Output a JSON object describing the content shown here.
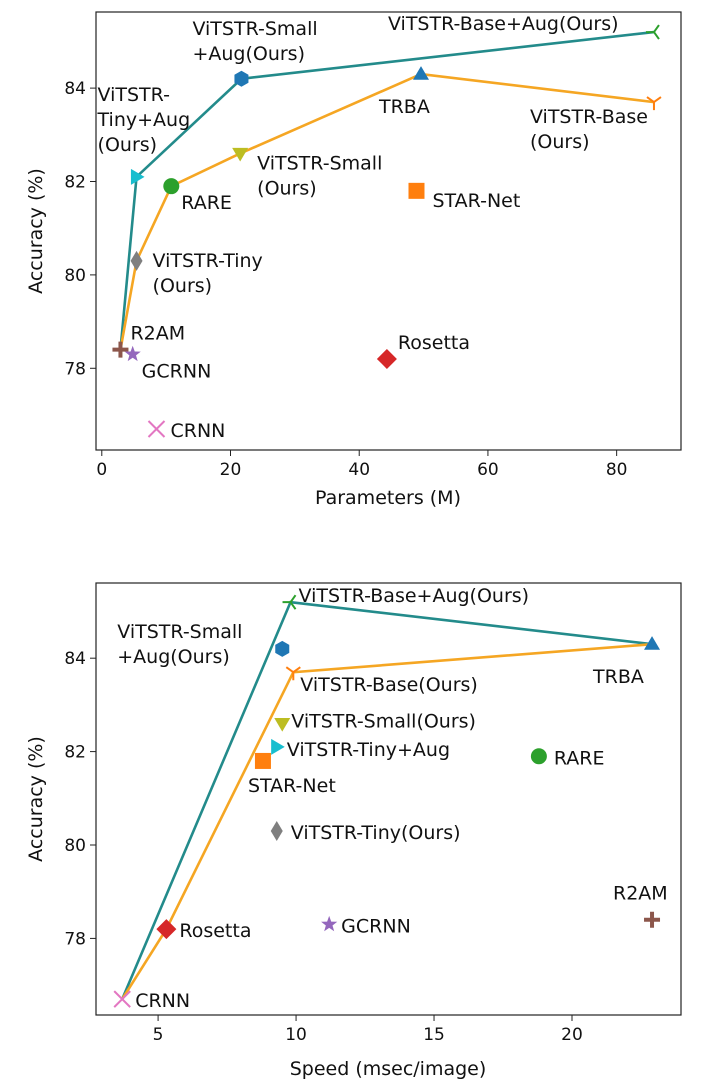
{
  "chart_data": [
    {
      "type": "scatter",
      "xlabel": "Parameters (M)",
      "ylabel": "Accuracy (%)",
      "xlim": [
        -0.9,
        90
      ],
      "ylim": [
        76.25,
        85.63
      ],
      "xticks": [
        0,
        20,
        40,
        60,
        80
      ],
      "yticks": [
        78,
        80,
        82,
        84
      ],
      "grid": false,
      "points": [
        {
          "id": "vitstr-base-aug",
          "label": [
            "ViTSTR-Base+Aug(Ours)"
          ],
          "x": 85.8,
          "y": 85.2,
          "marker": "tri_left",
          "color": "#2ca02c"
        },
        {
          "id": "vitstr-small-aug",
          "label": [
            "ViTSTR-Small",
            "+Aug(Ours)"
          ],
          "x": 21.7,
          "y": 84.2,
          "marker": "hexagon",
          "color": "#1f77b4"
        },
        {
          "id": "vitstr-tiny-aug",
          "label": [
            "ViTSTR-",
            "Tiny+Aug",
            "(Ours)"
          ],
          "x": 5.4,
          "y": 82.1,
          "marker": "triangle_right",
          "color": "#17becf"
        },
        {
          "id": "r2am",
          "label": [
            "R2AM"
          ],
          "x": 2.9,
          "y": 78.4,
          "marker": "plus",
          "color": "#8c564b"
        },
        {
          "id": "gcrnn",
          "label": [
            "GCRNN"
          ],
          "x": 4.8,
          "y": 78.3,
          "marker": "star",
          "color": "#9467bd"
        },
        {
          "id": "crnn",
          "label": [
            "CRNN"
          ],
          "x": 8.5,
          "y": 76.7,
          "marker": "x",
          "color": "#e377c2"
        },
        {
          "id": "rosetta",
          "label": [
            "Rosetta"
          ],
          "x": 44.3,
          "y": 78.2,
          "marker": "diamond",
          "color": "#d62728"
        },
        {
          "id": "vitstr-tiny",
          "label": [
            "ViTSTR-Tiny",
            "(Ours)"
          ],
          "x": 5.4,
          "y": 80.3,
          "marker": "thin_diamond",
          "color": "#7f7f7f"
        },
        {
          "id": "rare",
          "label": [
            "RARE"
          ],
          "x": 10.8,
          "y": 81.9,
          "marker": "circle",
          "color": "#2ca02c"
        },
        {
          "id": "vitstr-small",
          "label": [
            "ViTSTR-Small",
            "(Ours)"
          ],
          "x": 21.5,
          "y": 82.6,
          "marker": "triangle_down",
          "color": "#bcbd22"
        },
        {
          "id": "star-net",
          "label": [
            "STAR-Net"
          ],
          "x": 48.9,
          "y": 81.8,
          "marker": "square",
          "color": "#ff7f0e"
        },
        {
          "id": "trba",
          "label": [
            "TRBA"
          ],
          "x": 49.6,
          "y": 84.3,
          "marker": "triangle_up",
          "color": "#1f77b4"
        },
        {
          "id": "vitstr-base",
          "label": [
            "ViTSTR-Base",
            "(Ours)"
          ],
          "x": 85.8,
          "y": 83.7,
          "marker": "tri_down",
          "color": "#ff7f0e"
        }
      ],
      "lines": [
        {
          "color": "#238b8b",
          "path": [
            "r2am",
            "vitstr-tiny-aug",
            "vitstr-small-aug",
            "vitstr-base-aug"
          ]
        },
        {
          "color": "#f5a623",
          "path": [
            "r2am",
            "vitstr-tiny",
            "rare",
            "vitstr-small",
            "trba",
            "vitstr-base"
          ]
        }
      ]
    },
    {
      "type": "scatter",
      "xlabel": "Speed (msec/image)",
      "ylabel": "Accuracy (%)",
      "xlim": [
        2.75,
        23.95
      ],
      "ylim": [
        76.36,
        85.61
      ],
      "xticks": [
        5,
        10,
        15,
        20
      ],
      "yticks": [
        78,
        80,
        82,
        84
      ],
      "grid": false,
      "points": [
        {
          "id": "vitstr-base-aug",
          "label": [
            "ViTSTR-Base+Aug(Ours)"
          ],
          "x": 9.8,
          "y": 85.2,
          "marker": "tri_left",
          "color": "#2ca02c"
        },
        {
          "id": "vitstr-small-aug",
          "label": [
            "ViTSTR-Small",
            "+Aug(Ours)"
          ],
          "x": 9.5,
          "y": 84.2,
          "marker": "hexagon",
          "color": "#1f77b4"
        },
        {
          "id": "trba",
          "label": [
            "TRBA"
          ],
          "x": 22.9,
          "y": 84.3,
          "marker": "triangle_up",
          "color": "#1f77b4"
        },
        {
          "id": "vitstr-base",
          "label": [
            "ViTSTR-Base(Ours)"
          ],
          "x": 9.9,
          "y": 83.7,
          "marker": "tri_down",
          "color": "#ff7f0e"
        },
        {
          "id": "vitstr-small",
          "label": [
            "ViTSTR-Small(Ours)"
          ],
          "x": 9.5,
          "y": 82.6,
          "marker": "triangle_down",
          "color": "#bcbd22"
        },
        {
          "id": "vitstr-tiny-aug",
          "label": [
            "ViTSTR-Tiny+Aug"
          ],
          "x": 9.3,
          "y": 82.1,
          "marker": "triangle_right",
          "color": "#17becf"
        },
        {
          "id": "star-net",
          "label": [
            "STAR-Net"
          ],
          "x": 8.8,
          "y": 81.8,
          "marker": "square",
          "color": "#ff7f0e"
        },
        {
          "id": "rare",
          "label": [
            "RARE"
          ],
          "x": 18.8,
          "y": 81.9,
          "marker": "circle",
          "color": "#2ca02c"
        },
        {
          "id": "vitstr-tiny",
          "label": [
            "ViTSTR-Tiny(Ours)"
          ],
          "x": 9.3,
          "y": 80.3,
          "marker": "thin_diamond",
          "color": "#7f7f7f"
        },
        {
          "id": "r2am",
          "label": [
            "R2AM"
          ],
          "x": 22.9,
          "y": 78.4,
          "marker": "plus",
          "color": "#8c564b"
        },
        {
          "id": "rosetta",
          "label": [
            "Rosetta"
          ],
          "x": 5.3,
          "y": 78.2,
          "marker": "diamond",
          "color": "#d62728"
        },
        {
          "id": "gcrnn",
          "label": [
            "GCRNN"
          ],
          "x": 11.2,
          "y": 78.3,
          "marker": "star",
          "color": "#9467bd"
        },
        {
          "id": "crnn",
          "label": [
            "CRNN"
          ],
          "x": 3.7,
          "y": 76.7,
          "marker": "x",
          "color": "#e377c2"
        }
      ],
      "lines": [
        {
          "color": "#238b8b",
          "path": [
            "crnn",
            "vitstr-base-aug",
            "trba"
          ]
        },
        {
          "color": "#f5a623",
          "path": [
            "crnn",
            "rosetta",
            "vitstr-base",
            "trba"
          ]
        }
      ]
    }
  ]
}
